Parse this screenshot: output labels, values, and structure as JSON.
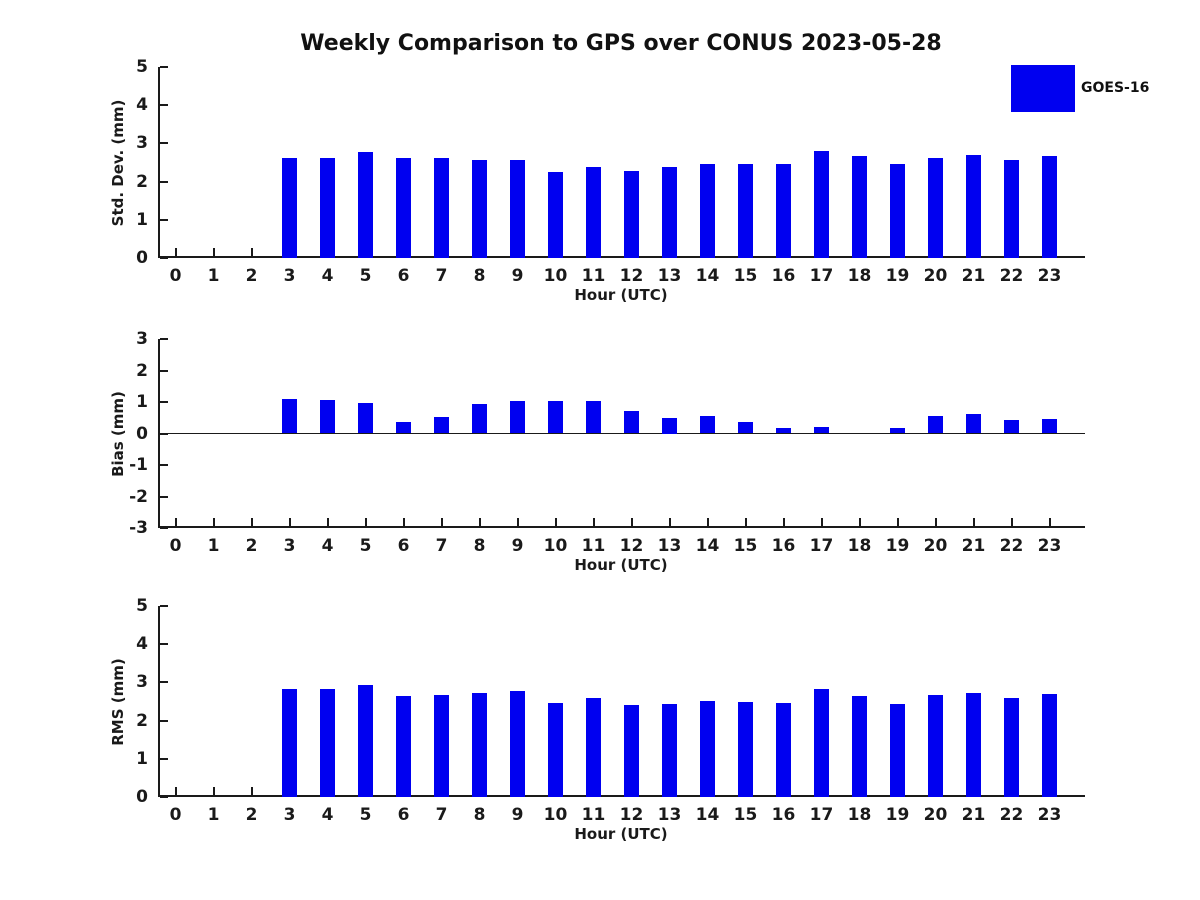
{
  "title": "Weekly Comparison to GPS over CONUS 2023-05-28",
  "legend": {
    "label": "GOES-16",
    "color": "#0000f0",
    "position": "top-right-outside"
  },
  "bar_color": "#0000f0",
  "chart_data": [
    {
      "type": "bar",
      "ylabel": "Std. Dev. (mm)",
      "xlabel": "Hour (UTC)",
      "categories": [
        "0",
        "1",
        "2",
        "3",
        "4",
        "5",
        "6",
        "7",
        "8",
        "9",
        "10",
        "11",
        "12",
        "13",
        "14",
        "15",
        "16",
        "17",
        "18",
        "19",
        "20",
        "21",
        "22",
        "23"
      ],
      "values": [
        null,
        null,
        null,
        2.61,
        2.61,
        2.77,
        2.61,
        2.61,
        2.56,
        2.56,
        2.25,
        2.37,
        2.29,
        2.39,
        2.45,
        2.45,
        2.46,
        2.81,
        2.66,
        2.45,
        2.63,
        2.7,
        2.56,
        2.66
      ],
      "ylim": [
        0,
        5
      ],
      "yticks": [
        0,
        1,
        2,
        3,
        4,
        5
      ],
      "grid": false,
      "zero_line": false
    },
    {
      "type": "bar",
      "ylabel": "Bias (mm)",
      "xlabel": "Hour (UTC)",
      "categories": [
        "0",
        "1",
        "2",
        "3",
        "4",
        "5",
        "6",
        "7",
        "8",
        "9",
        "10",
        "11",
        "12",
        "13",
        "14",
        "15",
        "16",
        "17",
        "18",
        "19",
        "20",
        "21",
        "22",
        "23"
      ],
      "values": [
        null,
        null,
        null,
        1.11,
        1.05,
        0.97,
        0.38,
        0.53,
        0.93,
        1.03,
        1.03,
        1.03,
        0.73,
        0.5,
        0.57,
        0.36,
        0.19,
        0.22,
        0.0,
        0.18,
        0.55,
        0.62,
        0.43,
        0.46
      ],
      "ylim": [
        -3,
        3
      ],
      "yticks": [
        -3,
        -2,
        -1,
        0,
        1,
        2,
        3
      ],
      "grid": false,
      "zero_line": true
    },
    {
      "type": "bar",
      "ylabel": "RMS (mm)",
      "xlabel": "Hour (UTC)",
      "categories": [
        "0",
        "1",
        "2",
        "3",
        "4",
        "5",
        "6",
        "7",
        "8",
        "9",
        "10",
        "11",
        "12",
        "13",
        "14",
        "15",
        "16",
        "17",
        "18",
        "19",
        "20",
        "21",
        "22",
        "23"
      ],
      "values": [
        null,
        null,
        null,
        2.83,
        2.83,
        2.93,
        2.65,
        2.67,
        2.72,
        2.77,
        2.47,
        2.6,
        2.41,
        2.44,
        2.52,
        2.48,
        2.46,
        2.83,
        2.65,
        2.44,
        2.67,
        2.72,
        2.59,
        2.7
      ],
      "ylim": [
        0,
        5
      ],
      "yticks": [
        0,
        1,
        2,
        3,
        4,
        5
      ],
      "grid": false,
      "zero_line": false
    }
  ]
}
